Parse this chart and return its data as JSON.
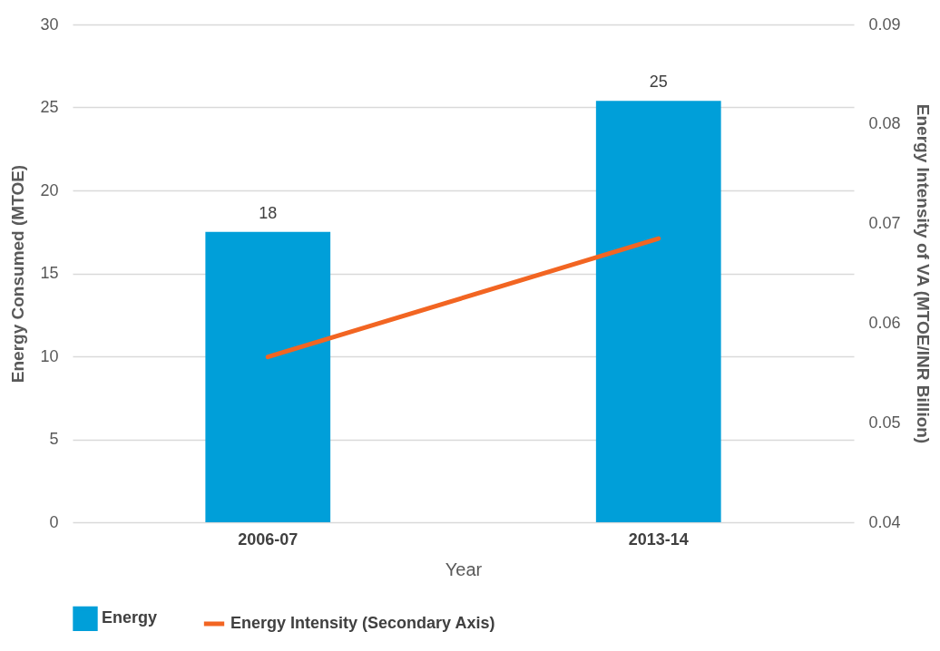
{
  "chart_data": {
    "type": "bar",
    "xlabel": "Year",
    "ylabel": "Energy Consumed (MTOE)",
    "y2label": "Energy Intensity of VA (MTOE/INR Billion)",
    "categories": [
      "2006-07",
      "2013-14"
    ],
    "series": [
      {
        "name": "Energy",
        "color": "#009fd9",
        "values": [
          17.5,
          25.4
        ],
        "value_labels": [
          "18",
          "25"
        ]
      },
      {
        "name": "Energy Intensity (Secondary Axis)",
        "type": "line",
        "axis": "y2",
        "color": "#f26522",
        "values": [
          0.0566,
          0.0685
        ]
      }
    ],
    "ylim": [
      0,
      30
    ],
    "yticks": [
      0,
      5,
      10,
      15,
      20,
      25,
      30
    ],
    "y2lim": [
      0.04,
      0.09
    ],
    "y2ticks": [
      0.04,
      0.05,
      0.06,
      0.07,
      0.08,
      0.09
    ],
    "grid": "y",
    "legend": "bottom"
  }
}
